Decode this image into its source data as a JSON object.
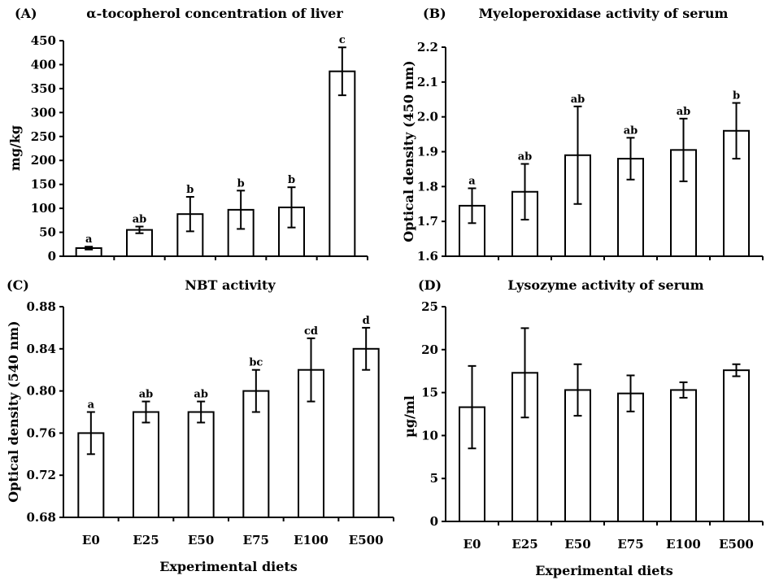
{
  "chart_data": [
    {
      "type": "bar",
      "panel_label": "(A)",
      "title": "α-tocopherol concentration of liver",
      "xlabel": "",
      "ylabel": "mg/kg",
      "ylim": [
        0,
        450
      ],
      "yticks": [
        0,
        50,
        100,
        150,
        200,
        250,
        300,
        350,
        400,
        450
      ],
      "categories": [
        "E0",
        "E25",
        "E50",
        "E75",
        "E100",
        "E500"
      ],
      "show_category_labels": false,
      "values": [
        17,
        55,
        88,
        97,
        102,
        386
      ],
      "errors": [
        3,
        7,
        36,
        40,
        42,
        50
      ],
      "significance": [
        "a",
        "ab",
        "b",
        "b",
        "b",
        "c"
      ]
    },
    {
      "type": "bar",
      "panel_label": "(B)",
      "title": "Myeloperoxidase activity of serum",
      "xlabel": "",
      "ylabel": "Optical density (450 nm)",
      "ylim": [
        1.6,
        2.2
      ],
      "yticks": [
        1.6,
        1.7,
        1.8,
        1.9,
        2.0,
        2.1,
        2.2
      ],
      "tick_decimals": 1,
      "categories": [
        "E0",
        "E25",
        "E50",
        "E75",
        "E100",
        "E500"
      ],
      "show_category_labels": false,
      "values": [
        1.745,
        1.785,
        1.89,
        1.88,
        1.905,
        1.96
      ],
      "errors": [
        0.05,
        0.08,
        0.14,
        0.06,
        0.09,
        0.08
      ],
      "significance": [
        "a",
        "ab",
        "ab",
        "ab",
        "ab",
        "b"
      ]
    },
    {
      "type": "bar",
      "panel_label": "(C)",
      "title": "NBT activity",
      "xlabel": "Experimental diets",
      "ylabel": "Optical density (540 nm)",
      "ylim": [
        0.68,
        0.88
      ],
      "yticks": [
        0.68,
        0.72,
        0.76,
        0.8,
        0.84,
        0.88
      ],
      "tick_decimals": 2,
      "categories": [
        "E0",
        "E25",
        "E50",
        "E75",
        "E100",
        "E500"
      ],
      "show_category_labels": true,
      "values": [
        0.76,
        0.78,
        0.78,
        0.8,
        0.82,
        0.84
      ],
      "errors": [
        0.02,
        0.01,
        0.01,
        0.02,
        0.03,
        0.02
      ],
      "significance": [
        "a",
        "ab",
        "ab",
        "bc",
        "cd",
        "d"
      ]
    },
    {
      "type": "bar",
      "panel_label": "(D)",
      "title": "Lysozyme activity of serum",
      "xlabel": "Experimental diets",
      "ylabel": "µg/ml",
      "ylim": [
        0,
        25
      ],
      "yticks": [
        0,
        5,
        10,
        15,
        20,
        25
      ],
      "categories": [
        "E0",
        "E25",
        "E50",
        "E75",
        "E100",
        "E500"
      ],
      "show_category_labels": true,
      "values": [
        13.3,
        17.3,
        15.3,
        14.9,
        15.3,
        17.6
      ],
      "errors": [
        4.8,
        5.2,
        3.0,
        2.1,
        0.9,
        0.7
      ],
      "significance": []
    }
  ]
}
